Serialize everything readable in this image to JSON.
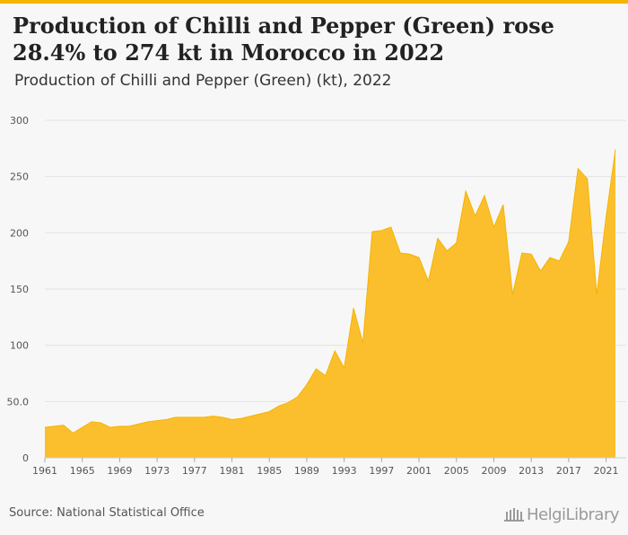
{
  "header": {
    "title": "Production of Chilli and Pepper (Green) rose 28.4% to 274 kt in Morocco in 2022",
    "subtitle": "Production of Chilli and Pepper (Green) (kt), 2022"
  },
  "footer": {
    "source": "Source: National Statistical Office",
    "logo_text": "HelgiLibrary"
  },
  "colors": {
    "fill": "#fbbf2e",
    "stroke": "#f4b400",
    "grid": "#e3e3e3",
    "background": "#f7f7f7"
  },
  "chart_data": {
    "type": "area",
    "title": "Production of Chilli and Pepper (Green) rose 28.4% to 274 kt in Morocco in 2022",
    "subtitle": "Production of Chilli and Pepper (Green) (kt), 2022",
    "xlabel": "",
    "ylabel": "",
    "ylim": [
      0,
      300
    ],
    "yticks": [
      0,
      50,
      100,
      150,
      200,
      250,
      300
    ],
    "ytick_labels": [
      "0",
      "50.0",
      "100",
      "150",
      "200",
      "250",
      "300"
    ],
    "xticks": [
      1961,
      1965,
      1969,
      1973,
      1977,
      1981,
      1985,
      1989,
      1993,
      1997,
      2001,
      2005,
      2009,
      2013,
      2017,
      2021
    ],
    "grid": true,
    "x": [
      1961,
      1962,
      1963,
      1964,
      1965,
      1966,
      1967,
      1968,
      1969,
      1970,
      1971,
      1972,
      1973,
      1974,
      1975,
      1976,
      1977,
      1978,
      1979,
      1980,
      1981,
      1982,
      1983,
      1984,
      1985,
      1986,
      1987,
      1988,
      1989,
      1990,
      1991,
      1992,
      1993,
      1994,
      1995,
      1996,
      1997,
      1998,
      1999,
      2000,
      2001,
      2002,
      2003,
      2004,
      2005,
      2006,
      2007,
      2008,
      2009,
      2010,
      2011,
      2012,
      2013,
      2014,
      2015,
      2016,
      2017,
      2018,
      2019,
      2020,
      2021,
      2022
    ],
    "values": [
      27,
      28,
      29,
      22,
      27,
      32,
      31,
      27,
      28,
      28,
      30,
      32,
      33,
      34,
      36,
      36,
      36,
      36,
      37,
      36,
      34,
      35,
      37,
      39,
      41,
      46,
      49,
      54,
      65,
      79,
      73,
      95,
      80,
      133,
      102,
      201,
      202,
      205,
      182,
      181,
      178,
      157,
      195,
      184,
      191,
      237,
      215,
      233,
      205,
      225,
      145,
      182,
      181,
      166,
      178,
      175,
      192,
      257,
      248,
      145,
      214,
      274
    ]
  }
}
